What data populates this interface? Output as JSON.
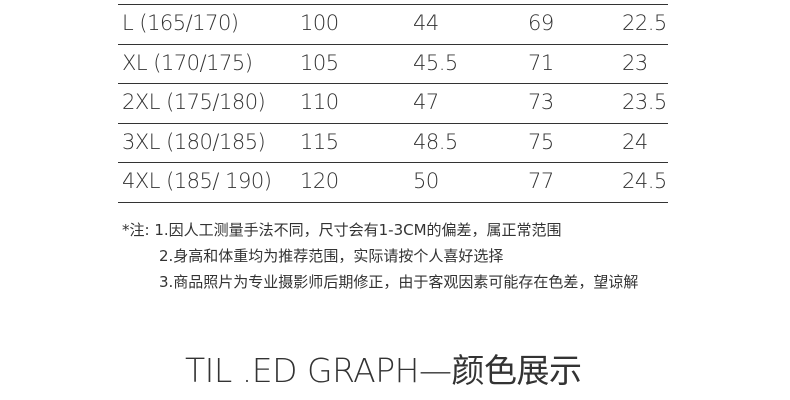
{
  "size_table": {
    "rows": [
      [
        "L (165/170)",
        "100",
        "44",
        "69",
        "22.5"
      ],
      [
        "XL (170/175)",
        "105",
        "45.5",
        "71",
        "23"
      ],
      [
        "2XL (175/180)",
        "110",
        "47",
        "73",
        "23.5"
      ],
      [
        "3XL (180/185)",
        "115",
        "48.5",
        "75",
        "24"
      ],
      [
        "4XL (185/ 190)",
        "120",
        "50",
        "77",
        "24.5"
      ]
    ]
  },
  "notes": {
    "prefix": "*注: ",
    "items": [
      "1.因人工测量手法不同，尺寸会有1-3CM的偏差，属正常范围",
      "2.身高和体重均为推荐范围，实际请按个人喜好选择",
      "3.商品照片为专业摄影师后期修正，由于客观因素可能存在色差，望谅解"
    ]
  },
  "section_title": "TIL .ED GRAPH—颜色展示"
}
